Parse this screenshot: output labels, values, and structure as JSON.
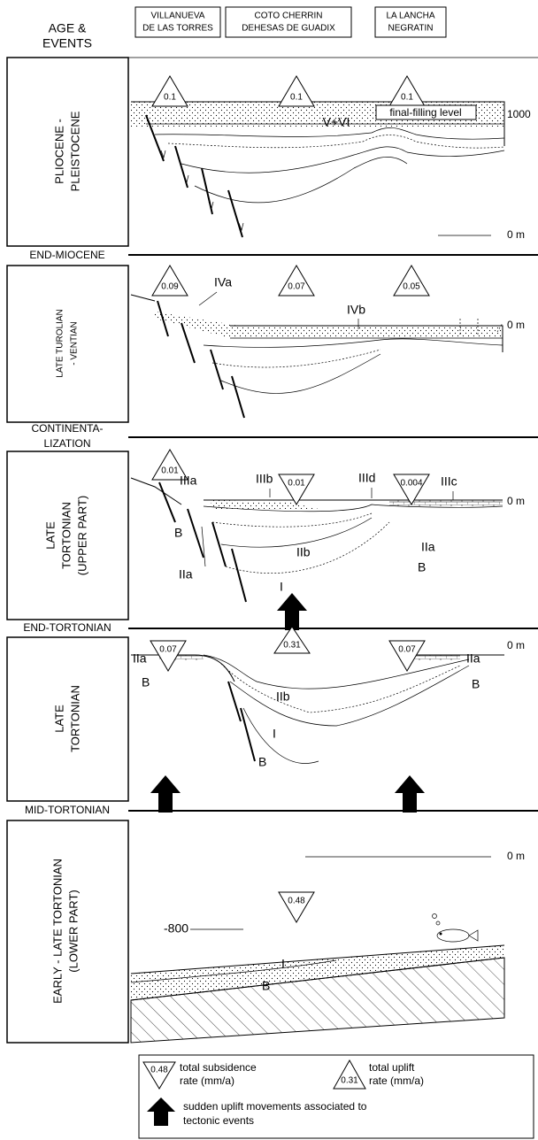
{
  "header": {
    "age_events": [
      "AGE &",
      "EVENTS"
    ],
    "locations": [
      [
        "VILLANUEVA",
        "DE LAS TORRES"
      ],
      [
        "COTO CHERRIN",
        "DEHESAS DE GUADIX"
      ],
      [
        "LA LANCHA",
        "NEGRATIN"
      ]
    ]
  },
  "panels": [
    {
      "age": [
        "PLIOCENE -",
        "PLEISTOCENE"
      ],
      "rates": [
        "0.1",
        "0.1",
        "0.1"
      ],
      "labels": [
        "V+VI",
        "final-filling level",
        "1000",
        "0 m"
      ]
    },
    {
      "age": [
        "LATE TUROLIAN",
        "- VENTIAN"
      ],
      "rates": [
        "0.09",
        "0.07",
        "0.05"
      ],
      "labels": [
        "IVa",
        "IVb",
        "0 m"
      ]
    },
    {
      "age": [
        "LATE",
        "TORTONIAN",
        "(UPPER PART)"
      ],
      "rates": [
        "0.01",
        "0.01",
        "0.004"
      ],
      "labels": [
        "IIIa",
        "IIIb",
        "IIId",
        "IIIc",
        "0 m",
        "B",
        "IIa",
        "IIb",
        "IIa",
        "B",
        "I"
      ]
    },
    {
      "age": [
        "LATE",
        "TORTONIAN"
      ],
      "rates": [
        "0.07",
        "0.31",
        "0.07"
      ],
      "labels": [
        "0 m",
        "IIa",
        "IIa",
        "B",
        "B",
        "IIb",
        "I",
        "B"
      ]
    },
    {
      "age": [
        "EARLY - LATE TORTONIAN",
        "(LOWER PART)"
      ],
      "rates": [
        "0.48"
      ],
      "labels": [
        "0 m",
        "-800",
        "I",
        "B"
      ]
    }
  ],
  "events": [
    [
      "END-MIOCENE"
    ],
    [
      "CONTINENTA-",
      "LIZATION"
    ],
    [
      "END-TORTONIAN"
    ],
    [
      "MID-TORTONIAN"
    ]
  ],
  "legend": {
    "subsidence": {
      "rate": "0.48",
      "text": [
        "total subsidence",
        "rate (mm/a)"
      ]
    },
    "uplift": {
      "rate": "0.31",
      "text": [
        "total uplift",
        "rate (mm/a)"
      ]
    },
    "arrow": [
      "sudden uplift movements associated to",
      "tectonic events"
    ]
  }
}
